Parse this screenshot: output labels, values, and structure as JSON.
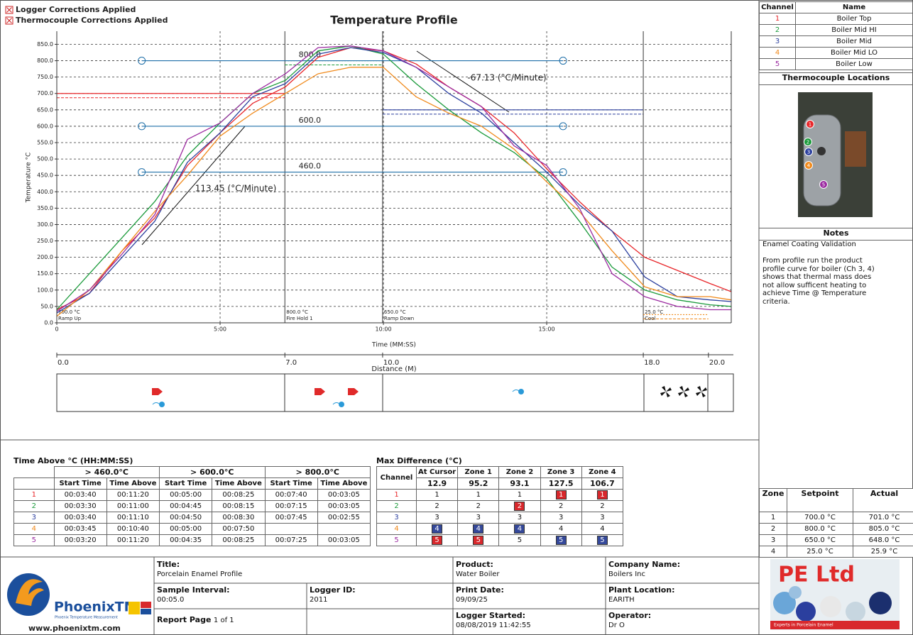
{
  "corrections": [
    "Logger Corrections Applied",
    "Thermocouple Corrections Applied"
  ],
  "channels": [
    "1",
    "2",
    "3",
    "4",
    "5"
  ],
  "chart_data": {
    "type": "line",
    "title": "Temperature Profile",
    "xlabel": "Time (MM:SS)",
    "ylabel": "Temperature °C",
    "x": [
      0,
      1,
      2,
      3,
      4,
      5,
      6,
      7,
      8,
      9,
      10,
      11,
      12,
      13,
      14,
      15,
      16,
      17,
      18,
      19,
      20,
      20.65
    ],
    "xlim": [
      0,
      20.65
    ],
    "xticks": [
      0,
      {
        "value": 5,
        "label": "5:00"
      },
      {
        "value": 10,
        "label": "10:00"
      },
      {
        "value": 15,
        "label": "15:00"
      }
    ],
    "ylim": [
      0,
      890
    ],
    "yticks": [
      {
        "value": 0,
        "label": "0.0"
      },
      {
        "value": 50,
        "label": "50.0"
      },
      {
        "value": 100,
        "label": "100.0"
      },
      {
        "value": 150,
        "label": "150.0"
      },
      {
        "value": 200,
        "label": "200.0"
      },
      {
        "value": 250,
        "label": "250.0"
      },
      {
        "value": 300,
        "label": "300.0"
      },
      {
        "value": 350,
        "label": "350.0"
      },
      {
        "value": 400,
        "label": "400.0"
      },
      {
        "value": 450,
        "label": "450.0"
      },
      {
        "value": 500,
        "label": "500.0"
      },
      {
        "value": 550,
        "label": "550.0"
      },
      {
        "value": 600,
        "label": "600.0"
      },
      {
        "value": 650,
        "label": "650.0"
      },
      {
        "value": 700,
        "label": "700.0"
      },
      {
        "value": 750,
        "label": "750.0"
      },
      {
        "value": 800,
        "label": "800.0"
      },
      {
        "value": 850,
        "label": "850.0"
      }
    ],
    "grid": true,
    "series": [
      {
        "name": "Boiler Top",
        "color": "#e8262a",
        "values": [
          40,
          90,
          220,
          320,
          480,
          580,
          670,
          720,
          810,
          840,
          830,
          790,
          720,
          660,
          580,
          470,
          370,
          280,
          200,
          160,
          120,
          95
        ]
      },
      {
        "name": "Boiler Mid HI",
        "color": "#1a9a3a",
        "values": [
          40,
          150,
          260,
          370,
          510,
          610,
          700,
          740,
          830,
          845,
          820,
          730,
          650,
          580,
          520,
          440,
          310,
          170,
          100,
          70,
          55,
          50
        ]
      },
      {
        "name": "Boiler Mid",
        "color": "#2b3f9e",
        "values": [
          30,
          90,
          200,
          310,
          490,
          580,
          690,
          730,
          820,
          840,
          825,
          780,
          700,
          640,
          550,
          460,
          360,
          280,
          140,
          80,
          70,
          65
        ]
      },
      {
        "name": "Boiler Mid LO",
        "color": "#f08a1c",
        "values": [
          20,
          100,
          220,
          340,
          450,
          570,
          640,
          700,
          760,
          780,
          780,
          690,
          640,
          600,
          530,
          430,
          340,
          220,
          110,
          80,
          80,
          70
        ]
      },
      {
        "name": "Boiler Low",
        "color": "#9b2aa0",
        "values": [
          35,
          100,
          210,
          330,
          560,
          610,
          700,
          760,
          840,
          845,
          830,
          780,
          720,
          660,
          540,
          480,
          350,
          150,
          80,
          50,
          40,
          40
        ]
      }
    ],
    "levels": [
      {
        "value": 460,
        "label": "460.0",
        "start": 2.6,
        "end": 15.5
      },
      {
        "value": 600,
        "label": "600.0",
        "start": 2.6,
        "end": 15.5
      },
      {
        "value": 800,
        "label": "800.0",
        "start": 2.6,
        "end": 15.5
      }
    ],
    "slopes": [
      "113.45 (°C/Minute)",
      "-67.13 (°C/Minute)"
    ],
    "zones": [
      {
        "start": 0,
        "end": 7,
        "setpoint": 700,
        "setpoint_label": "700.0 °C",
        "name": "Ramp Up",
        "color": "#e8262a"
      },
      {
        "start": 7,
        "end": 10,
        "setpoint": 800,
        "setpoint_label": "800.0 °C",
        "name": "Fire Hold 1",
        "color": "#1a9a3a"
      },
      {
        "start": 10,
        "end": 18,
        "setpoint": 650,
        "setpoint_label": "650.0 °C",
        "name": "Ramp Down",
        "color": "#2b3f9e"
      },
      {
        "start": 18,
        "end": 20,
        "setpoint": 25,
        "setpoint_label": "25.0 °C",
        "name": "Cool",
        "color": "#f08a1c"
      }
    ],
    "x2label": "Distance (M)",
    "x2lim": [
      0,
      20.7
    ],
    "x2ticks": [
      {
        "value": 0,
        "label": "0.0"
      },
      {
        "value": 7,
        "label": "7.0"
      },
      {
        "value": 10,
        "label": "10.0"
      },
      {
        "value": 18,
        "label": "18.0"
      },
      {
        "value": 20,
        "label": "20.0"
      }
    ]
  },
  "channel_table": {
    "header": [
      "Channel",
      "Name"
    ]
  },
  "locations": {
    "title": "Thermocouple Locations"
  },
  "notes": {
    "title": "Notes",
    "heading": "Enamel Coating Validation",
    "text": "From profile run the product profile curve for  boiler (Ch 3, 4) shows that thermal mass does not allow sufficent heating to achieve Time @ Temperature criteria."
  },
  "zone_table": {
    "header": [
      "Zone",
      "Setpoint",
      "Actual"
    ],
    "rows": [
      [
        "1",
        "700.0 °C",
        "701.0 °C"
      ],
      [
        "2",
        "800.0 °C",
        "805.0 °C"
      ],
      [
        "3",
        "650.0 °C",
        "648.0 °C"
      ],
      [
        "4",
        "25.0 °C",
        "25.9 °C"
      ]
    ]
  },
  "time_above": {
    "title": "Time Above °C (HH:MM:SS)",
    "groups": [
      "> 460.0°C",
      "> 600.0°C",
      "> 800.0°C"
    ],
    "columns": [
      "Start Time",
      "Time Above"
    ],
    "rows": [
      [
        "00:03:40",
        "00:11:20",
        "00:05:00",
        "00:08:25",
        "00:07:40",
        "00:03:05"
      ],
      [
        "00:03:30",
        "00:11:00",
        "00:04:45",
        "00:08:15",
        "00:07:15",
        "00:03:05"
      ],
      [
        "00:03:40",
        "00:11:10",
        "00:04:50",
        "00:08:30",
        "00:07:45",
        "00:02:55"
      ],
      [
        "00:03:45",
        "00:10:40",
        "00:05:00",
        "00:07:50",
        null,
        null
      ],
      [
        "00:03:20",
        "00:11:20",
        "00:04:35",
        "00:08:25",
        "00:07:25",
        "00:03:05"
      ]
    ]
  },
  "max_difference": {
    "title": "Max Difference (°C)",
    "channel_header": "Channel",
    "columns": [
      "At Cursor",
      "Zone 1",
      "Zone 2",
      "Zone 3",
      "Zone 4"
    ],
    "totals": [
      12.9,
      95.2,
      93.1,
      127.5,
      106.7
    ],
    "rows": [
      {
        "values": [
          1,
          1,
          1,
          1,
          1
        ],
        "colors": [
          null,
          null,
          null,
          "#d8282c",
          "#d8282c"
        ]
      },
      {
        "values": [
          2,
          2,
          2,
          2,
          2
        ],
        "colors": [
          null,
          null,
          "#d8282c",
          null,
          null
        ]
      },
      {
        "values": [
          3,
          3,
          3,
          3,
          3
        ],
        "colors": [
          null,
          null,
          null,
          null,
          null
        ]
      },
      {
        "values": [
          4,
          4,
          4,
          4,
          4
        ],
        "colors": [
          "#34489a",
          "#34489a",
          "#34489a",
          null,
          null
        ]
      },
      {
        "values": [
          5,
          5,
          5,
          5,
          5
        ],
        "colors": [
          "#d8282c",
          "#d8282c",
          null,
          "#34489a",
          "#34489a"
        ]
      }
    ]
  },
  "footer": {
    "logo": "PhoenixTM",
    "tagline": "Phoenix Temperature Measurement",
    "url": "www.phoenixtm.com",
    "fields": [
      {
        "label": "Title:",
        "value": "Porcelain Enamel Profile"
      },
      {
        "label": "Sample Interval:",
        "value": "00:05.0"
      },
      {
        "label": "Logger ID:",
        "value": "2011"
      },
      {
        "label": "Report Page",
        "value": "1 of 1"
      },
      {
        "label": "Product:",
        "value": "Water Boiler"
      },
      {
        "label": "Print Date:",
        "value": "09/09/25"
      },
      {
        "label": "Logger Started:",
        "value": "08/08/2019 11:42:55"
      },
      {
        "label": "Company Name:",
        "value": "Boilers Inc"
      },
      {
        "label": "Plant Location:",
        "value": "EARITH"
      },
      {
        "label": "Operator:",
        "value": "Dr O"
      }
    ],
    "brand": "PE Ltd",
    "brand_tagline": "Experts in Porcelain Enamel"
  }
}
